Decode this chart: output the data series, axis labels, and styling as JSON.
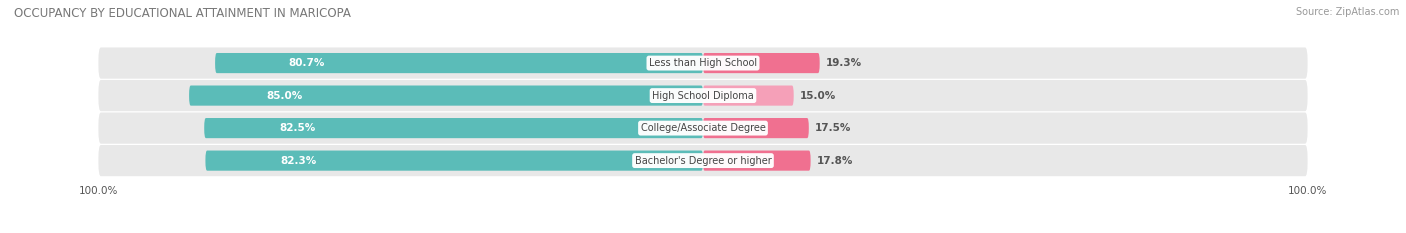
{
  "title": "OCCUPANCY BY EDUCATIONAL ATTAINMENT IN MARICOPA",
  "source": "Source: ZipAtlas.com",
  "categories": [
    "Less than High School",
    "High School Diploma",
    "College/Associate Degree",
    "Bachelor's Degree or higher"
  ],
  "owner_pct": [
    80.7,
    85.0,
    82.5,
    82.3
  ],
  "renter_pct": [
    19.3,
    15.0,
    17.5,
    17.8
  ],
  "owner_color": "#5bbcb8",
  "renter_color_row0": "#f07090",
  "renter_color_row1": "#f5a0b8",
  "renter_color_row2": "#f07090",
  "renter_color_row3": "#f07090",
  "bg_color": "#f0f0f0",
  "row_bg_color": "#e8e8e8",
  "bar_height": 0.62,
  "figsize": [
    14.06,
    2.33
  ],
  "dpi": 100,
  "title_fontsize": 8.5,
  "label_fontsize": 7.5,
  "tick_fontsize": 7.5,
  "source_fontsize": 7
}
